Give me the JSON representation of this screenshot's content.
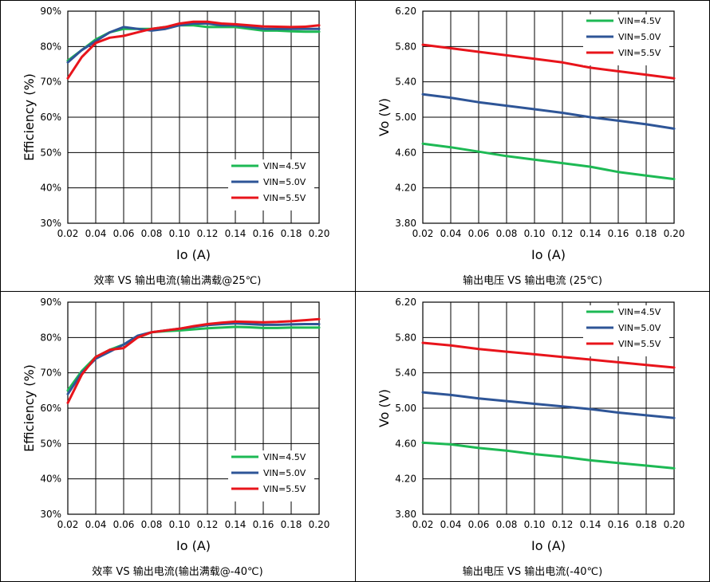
{
  "series_colors": {
    "VIN=4.5V": "#1db954",
    "VIN=5.0V": "#2e5597",
    "VIN=5.5V": "#e8141b"
  },
  "chart_data": [
    {
      "type": "line",
      "title": "效率 VS 输出电流(输出满载@25℃)",
      "xlabel": "Io (A)",
      "ylabel": "Efficiency (%)",
      "xlim": [
        0.02,
        0.2
      ],
      "ylim": [
        30,
        90
      ],
      "xticks": [
        "0.02",
        "0.04",
        "0.06",
        "0.08",
        "0.10",
        "0.12",
        "0.14",
        "0.16",
        "0.18",
        "0.20"
      ],
      "yticks": [
        "30%",
        "40%",
        "50%",
        "60%",
        "70%",
        "80%",
        "90%"
      ],
      "grid": true,
      "legend": "bottom-right",
      "x": [
        0.02,
        0.03,
        0.04,
        0.05,
        0.06,
        0.07,
        0.08,
        0.09,
        0.1,
        0.11,
        0.12,
        0.13,
        0.14,
        0.15,
        0.16,
        0.17,
        0.18,
        0.19,
        0.2
      ],
      "series": [
        {
          "name": "VIN=4.5V",
          "values": [
            76,
            79,
            82,
            84,
            85,
            85,
            85,
            85.5,
            86,
            86,
            85.5,
            85.5,
            85.5,
            85,
            84.5,
            84.5,
            84.3,
            84.2,
            84.2
          ]
        },
        {
          "name": "VIN=5.0V",
          "values": [
            75.5,
            79,
            81.5,
            84,
            85.5,
            85,
            84.5,
            85,
            86,
            86.5,
            86.5,
            86,
            86,
            85.5,
            85,
            85,
            85,
            85,
            85
          ]
        },
        {
          "name": "VIN=5.5V",
          "values": [
            71,
            77,
            81,
            82.5,
            83,
            84,
            85,
            85.5,
            86.5,
            87,
            87,
            86.5,
            86.3,
            86,
            85.7,
            85.6,
            85.5,
            85.6,
            86
          ]
        }
      ]
    },
    {
      "type": "line",
      "title": "输出电压 VS 输出电流 (25℃)",
      "xlabel": "Io (A)",
      "ylabel": "Vo (V)",
      "xlim": [
        0.02,
        0.2
      ],
      "ylim": [
        3.8,
        6.2
      ],
      "xticks": [
        "0.02",
        "0.04",
        "0.06",
        "0.08",
        "0.10",
        "0.12",
        "0.14",
        "0.16",
        "0.18",
        "0.20"
      ],
      "yticks": [
        "3.80",
        "4.20",
        "4.60",
        "5.00",
        "5.40",
        "5.80",
        "6.20"
      ],
      "grid": true,
      "legend": "top-right",
      "x": [
        0.02,
        0.04,
        0.06,
        0.08,
        0.1,
        0.12,
        0.14,
        0.16,
        0.18,
        0.2
      ],
      "series": [
        {
          "name": "VIN=4.5V",
          "values": [
            4.7,
            4.66,
            4.61,
            4.56,
            4.52,
            4.48,
            4.44,
            4.38,
            4.34,
            4.3
          ]
        },
        {
          "name": "VIN=5.0V",
          "values": [
            5.26,
            5.22,
            5.17,
            5.13,
            5.09,
            5.05,
            5.0,
            4.96,
            4.92,
            4.87
          ]
        },
        {
          "name": "VIN=5.5V",
          "values": [
            5.82,
            5.78,
            5.74,
            5.7,
            5.66,
            5.62,
            5.56,
            5.52,
            5.48,
            5.44
          ]
        }
      ]
    },
    {
      "type": "line",
      "title": "效率 VS 输出电流(输出满载@-40℃)",
      "xlabel": "Io (A)",
      "ylabel": "Efficiency (%)",
      "xlim": [
        0.02,
        0.2
      ],
      "ylim": [
        30,
        90
      ],
      "xticks": [
        "0.02",
        "0.04",
        "0.06",
        "0.08",
        "0.10",
        "0.12",
        "0.14",
        "0.16",
        "0.18",
        "0.20"
      ],
      "yticks": [
        "30%",
        "40%",
        "50%",
        "60%",
        "70%",
        "80%",
        "90%"
      ],
      "grid": true,
      "legend": "bottom-right",
      "x": [
        0.02,
        0.03,
        0.04,
        0.05,
        0.06,
        0.07,
        0.08,
        0.09,
        0.1,
        0.11,
        0.12,
        0.13,
        0.14,
        0.15,
        0.16,
        0.17,
        0.18,
        0.19,
        0.2
      ],
      "series": [
        {
          "name": "VIN=4.5V",
          "values": [
            65,
            70.5,
            74.5,
            76.5,
            78,
            80,
            81.5,
            81.8,
            82,
            82.3,
            82.6,
            82.8,
            83,
            82.9,
            82.7,
            82.7,
            82.8,
            82.8,
            82.8
          ]
        },
        {
          "name": "VIN=5.0V",
          "values": [
            64,
            70,
            74,
            76,
            78,
            80.5,
            81.5,
            82,
            82.5,
            83,
            83.5,
            83.8,
            84,
            83.8,
            83.6,
            83.6,
            83.7,
            83.8,
            83.8
          ]
        },
        {
          "name": "VIN=5.5V",
          "values": [
            61.5,
            69.5,
            74.5,
            76.5,
            77,
            80,
            81.5,
            82,
            82.5,
            83.2,
            83.8,
            84.2,
            84.5,
            84.4,
            84.3,
            84.4,
            84.6,
            84.9,
            85.2
          ]
        }
      ]
    },
    {
      "type": "line",
      "title": "输出电压 VS 输出电流(-40℃)",
      "xlabel": "Io (A)",
      "ylabel": "Vo (V)",
      "xlim": [
        0.02,
        0.2
      ],
      "ylim": [
        3.8,
        6.2
      ],
      "xticks": [
        "0.02",
        "0.04",
        "0.06",
        "0.08",
        "0.10",
        "0.12",
        "0.14",
        "0.16",
        "0.18",
        "0.20"
      ],
      "yticks": [
        "3.80",
        "4.20",
        "4.60",
        "5.00",
        "5.40",
        "5.80",
        "6.20"
      ],
      "grid": true,
      "legend": "top-right",
      "x": [
        0.02,
        0.04,
        0.06,
        0.08,
        0.1,
        0.12,
        0.14,
        0.16,
        0.18,
        0.2
      ],
      "series": [
        {
          "name": "VIN=4.5V",
          "values": [
            4.61,
            4.59,
            4.55,
            4.52,
            4.48,
            4.45,
            4.41,
            4.38,
            4.35,
            4.32
          ]
        },
        {
          "name": "VIN=5.0V",
          "values": [
            5.18,
            5.15,
            5.11,
            5.08,
            5.05,
            5.02,
            4.99,
            4.95,
            4.92,
            4.89
          ]
        },
        {
          "name": "VIN=5.5V",
          "values": [
            5.74,
            5.71,
            5.67,
            5.64,
            5.61,
            5.58,
            5.55,
            5.52,
            5.49,
            5.46
          ]
        }
      ]
    }
  ]
}
